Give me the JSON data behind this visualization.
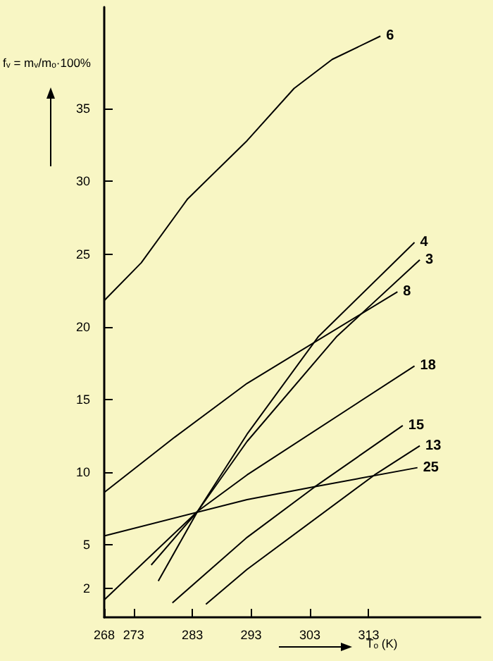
{
  "chart_data": {
    "type": "line",
    "xlabel": "T$_{o}$ (K)",
    "ylabel": "f$_{v}$ = m$_{v}$/m$_{o}$·100%",
    "xlim": [
      268,
      332
    ],
    "xticks": [
      268,
      273,
      283,
      293,
      303,
      313
    ],
    "ylim": [
      0,
      42
    ],
    "yticks": [
      2,
      5,
      10,
      15,
      20,
      25,
      30,
      35
    ],
    "marker": "none",
    "line_style": "solid",
    "series": [
      {
        "name": "6",
        "color": "#000000",
        "x": [
          268,
          274.3,
          282.2,
          292.3,
          300.3,
          306.8,
          315
        ],
        "values": [
          21.8,
          24.4,
          28.8,
          32.8,
          36.4,
          38.4,
          40
        ]
      },
      {
        "name": "4",
        "color": "#000000",
        "x": [
          276,
          283.9,
          292.3,
          304.4,
          320.8
        ],
        "values": [
          3.6,
          7.3,
          12.6,
          19.3,
          25.8
        ]
      },
      {
        "name": "3",
        "color": "#000000",
        "x": [
          277.2,
          283.9,
          292.3,
          307.5,
          321.7
        ],
        "values": [
          2.5,
          7.3,
          12.1,
          19.3,
          24.6
        ]
      },
      {
        "name": "8",
        "color": "#000000",
        "x": [
          268,
          280,
          292.3,
          317.9
        ],
        "values": [
          8.6,
          12.4,
          16.1,
          22.4
        ]
      },
      {
        "name": "18",
        "color": "#000000",
        "x": [
          268,
          283.9,
          292.3,
          320.8
        ],
        "values": [
          1.2,
          7.3,
          9.8,
          17.3
        ]
      },
      {
        "name": "15",
        "color": "#000000",
        "x": [
          279.6,
          292.3,
          303.9,
          318.8
        ],
        "values": [
          1.0,
          5.5,
          9.0,
          13.2
        ]
      },
      {
        "name": "13",
        "color": "#000000",
        "x": [
          285.3,
          292.3,
          314,
          321.7
        ],
        "values": [
          0.9,
          3.3,
          9.8,
          11.8
        ]
      },
      {
        "name": "25",
        "color": "#000000",
        "x": [
          268,
          292.3,
          303.9,
          321.3
        ],
        "values": [
          5.6,
          8.1,
          9.0,
          10.3
        ]
      }
    ]
  }
}
